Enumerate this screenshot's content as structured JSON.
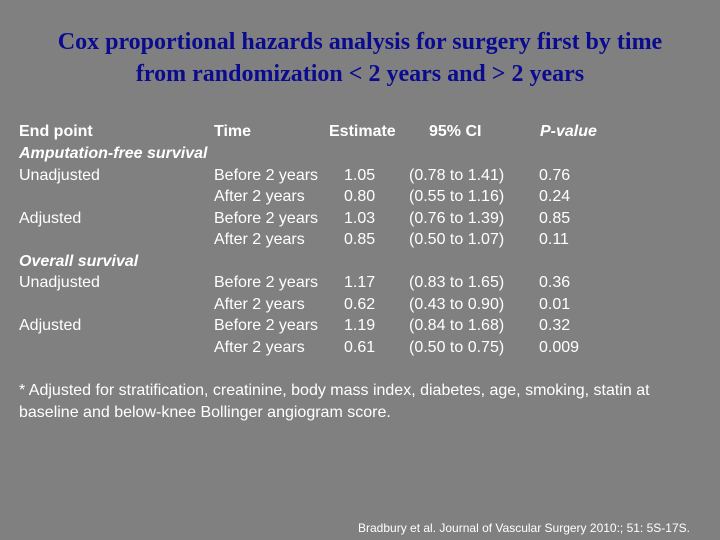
{
  "title": {
    "line1": "Cox proportional hazards analysis for surgery first by time",
    "line2": "from randomization < 2 years and > 2 years"
  },
  "colors": {
    "background": "#808080",
    "title": "#0b0b8f",
    "text": "#ffffff"
  },
  "table": {
    "headers": {
      "end_point": "End point",
      "time": "Time",
      "estimate": "Estimate",
      "ci": "95% CI",
      "pvalue": "P-value"
    },
    "sections": [
      {
        "label": "Amputation-free survival",
        "rows": [
          {
            "group": "Unadjusted",
            "time": "Before 2 years",
            "estimate": "1.05",
            "ci": "(0.78 to 1.41)",
            "p": "0.76"
          },
          {
            "group": "",
            "time": "After 2 years",
            "estimate": "0.80",
            "ci": "(0.55 to 1.16)",
            "p": "0.24"
          },
          {
            "group": "Adjusted",
            "time": "Before 2 years",
            "estimate": "1.03",
            "ci": "(0.76 to 1.39)",
            "p": "0.85"
          },
          {
            "group": "",
            "time": "After 2 years",
            "estimate": "0.85",
            "ci": "(0.50 to 1.07)",
            "p": "0.11"
          }
        ]
      },
      {
        "label": "Overall survival",
        "rows": [
          {
            "group": "Unadjusted",
            "time": "Before 2 years",
            "estimate": "1.17",
            "ci": "(0.83 to 1.65)",
            "p": "0.36"
          },
          {
            "group": "",
            "time": "After 2 years",
            "estimate": "0.62",
            "ci": "(0.43 to 0.90)",
            "p": "0.01"
          },
          {
            "group": "Adjusted",
            "time": "Before 2 years",
            "estimate": "1.19",
            "ci": "(0.84 to 1.68)",
            "p": "0.32"
          },
          {
            "group": "",
            "time": "After 2 years",
            "estimate": "0.61",
            "ci": "(0.50 to 0.75)",
            "p": "0.009"
          }
        ]
      }
    ]
  },
  "footnote": "* Adjusted for stratification, creatinine, body mass index, diabetes, age, smoking, statin at baseline and below-knee Bollinger angiogram score.",
  "citation": "Bradbury et al. Journal of Vascular Surgery 2010:; 51: 5S-17S."
}
